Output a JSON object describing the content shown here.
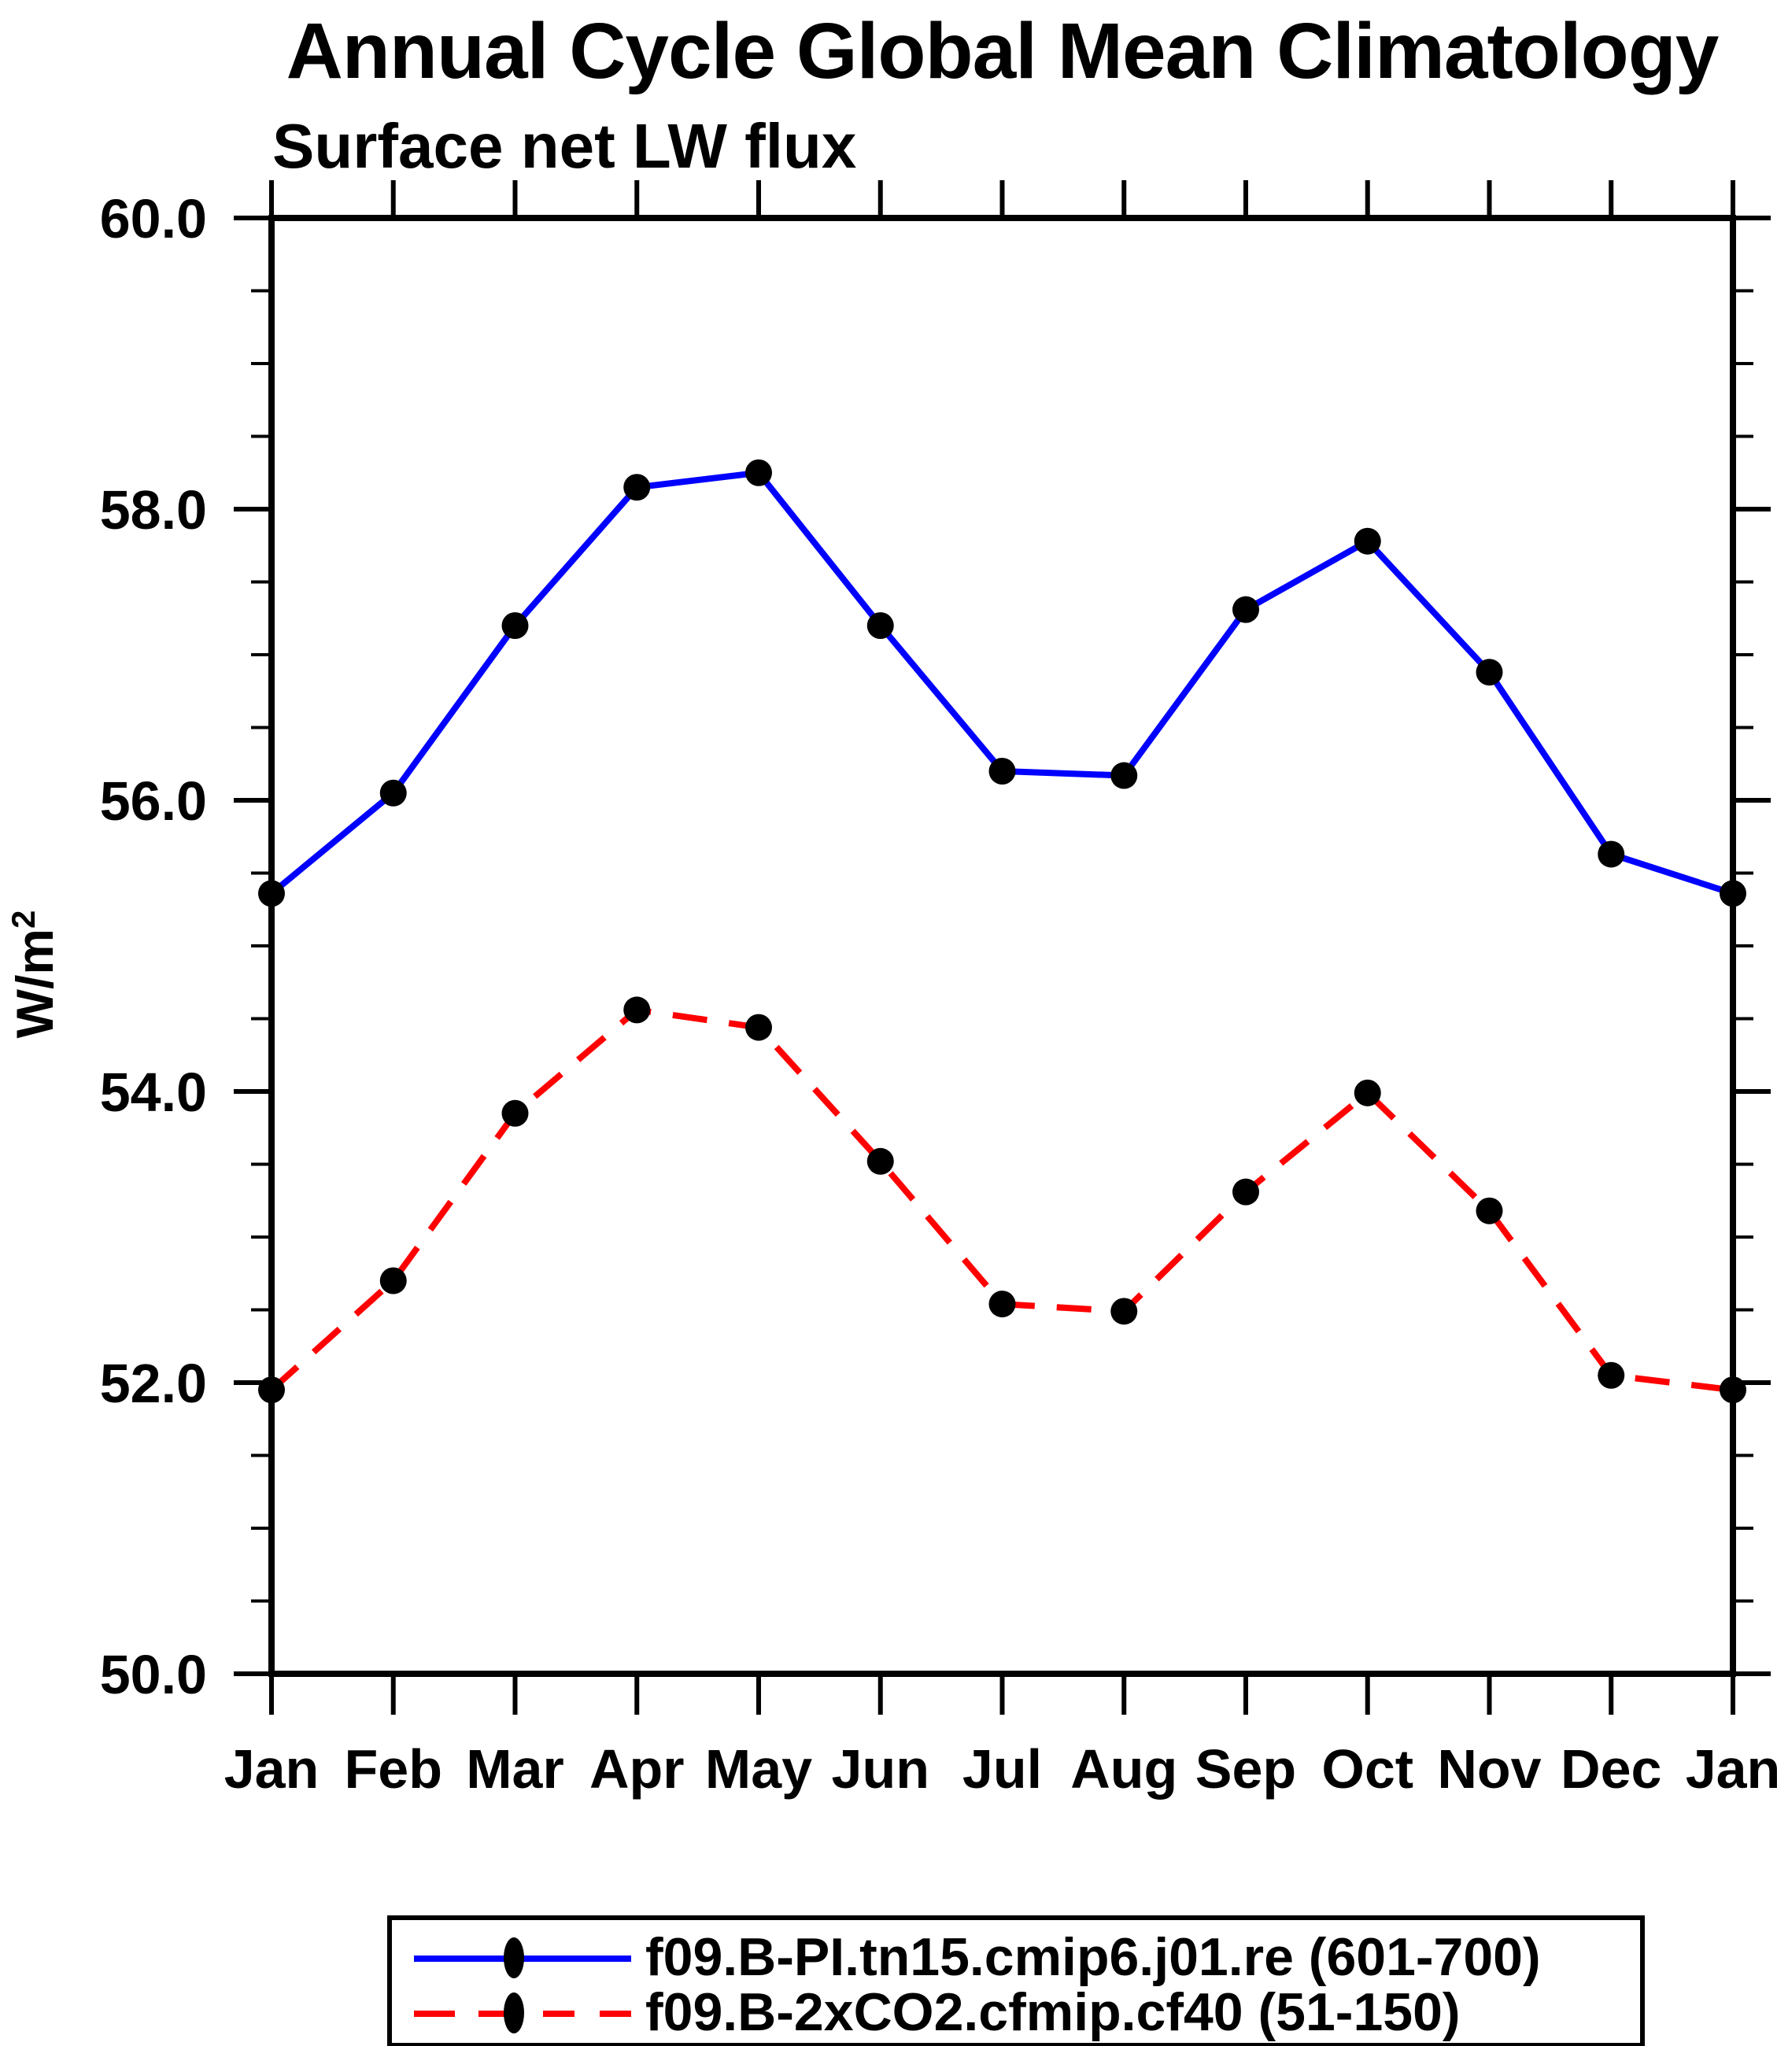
{
  "title": "Annual Cycle Global Mean Climatology",
  "subtitle": "Surface net LW flux",
  "y_axis": {
    "label_main": "W/m",
    "label_sup": "2"
  },
  "colors": {
    "series1": "#0000ff",
    "series2": "#ff0000",
    "marker": "#000000",
    "axis": "#000000"
  },
  "chart_data": {
    "type": "line",
    "title": "Annual Cycle Global Mean Climatology",
    "subtitle": "Surface net LW flux",
    "xlabel": "",
    "ylabel": "W/m^2",
    "categories": [
      "Jan",
      "Feb",
      "Mar",
      "Apr",
      "May",
      "Jun",
      "Jul",
      "Aug",
      "Sep",
      "Oct",
      "Nov",
      "Dec",
      "Jan"
    ],
    "ylim": [
      50.0,
      60.0
    ],
    "y_major_ticks": [
      50.0,
      52.0,
      54.0,
      56.0,
      58.0,
      60.0
    ],
    "y_tick_labels": [
      "50.0",
      "52.0",
      "54.0",
      "56.0",
      "58.0",
      "60.0"
    ],
    "y_minor_step": 0.5,
    "grid": false,
    "legend_position": "bottom",
    "series": [
      {
        "name": "f09.B-PI.tn15.cmip6.j01.re (601-700)",
        "color": "#0000ff",
        "style": "solid",
        "marker": "circle",
        "marker_color": "#000000",
        "values": [
          55.36,
          56.05,
          57.2,
          58.15,
          58.25,
          57.2,
          56.2,
          56.17,
          57.31,
          57.78,
          56.88,
          55.63,
          55.36
        ]
      },
      {
        "name": "f09.B-2xCO2.cfmip.cf40 (51-150)",
        "color": "#ff0000",
        "style": "dashed",
        "marker": "circle",
        "marker_color": "#000000",
        "values": [
          51.95,
          52.7,
          53.85,
          54.56,
          54.44,
          53.52,
          52.54,
          52.49,
          53.31,
          53.99,
          53.18,
          52.05,
          51.95
        ]
      }
    ]
  }
}
